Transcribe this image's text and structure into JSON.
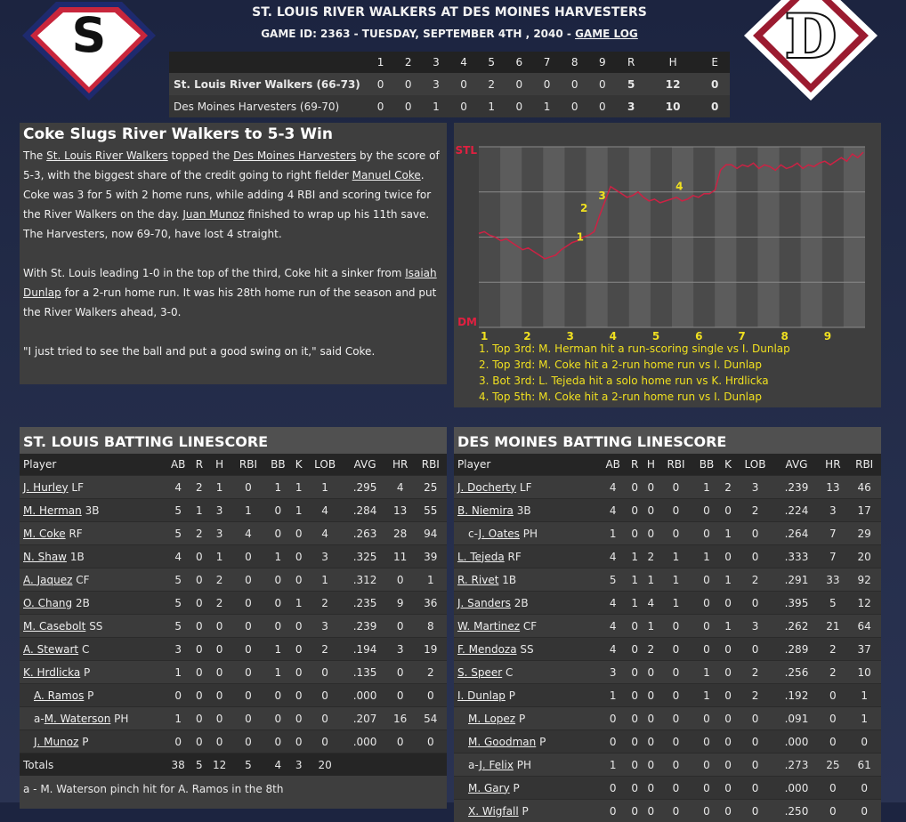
{
  "header": {
    "title": "ST. LOUIS RIVER WALKERS AT DES MOINES HARVESTERS",
    "game_line": "GAME ID: 2363 - TUESDAY, SEPTEMBER 4TH , 2040 - ",
    "game_log_link": "GAME LOG",
    "away_logo_letter": "S",
    "home_logo_letter": "D"
  },
  "linescore": {
    "columns": [
      "",
      "1",
      "2",
      "3",
      "4",
      "5",
      "6",
      "7",
      "8",
      "9",
      "R",
      "H",
      "E"
    ],
    "rows": [
      {
        "team": "St. Louis River Walkers (66-73)",
        "innings": [
          "0",
          "0",
          "3",
          "0",
          "2",
          "0",
          "0",
          "0",
          "0"
        ],
        "R": "5",
        "H": "12",
        "E": "0"
      },
      {
        "team": "Des Moines Harvesters (69-70)",
        "innings": [
          "0",
          "0",
          "1",
          "0",
          "1",
          "0",
          "1",
          "0",
          "0"
        ],
        "R": "3",
        "H": "10",
        "E": "0"
      }
    ]
  },
  "story": {
    "headline": "Coke Slugs River Walkers to 5-3 Win",
    "p1": {
      "t1": "The ",
      "l1": "St. Louis River Walkers",
      "t2": " topped the ",
      "l2": "Des Moines Harvesters",
      "t3": " by the score of 5-3, with the biggest share of the credit going to right fielder ",
      "l3": "Manuel Coke",
      "t4": ". Coke was 3 for 5 with 2 home runs, while adding 4 RBI and scoring twice for the River Walkers on the day. ",
      "l4": "Juan Munoz",
      "t5": " finished to wrap up his 11th save. The Harvesters, now 69-70, have lost 4 straight."
    },
    "p2": {
      "t1": "With St. Louis leading 1-0 in the top of the third, Coke hit a sinker from ",
      "l1": "Isaiah Dunlap",
      "t2": " for a 2-run home run. It was his 28th home run of the season and put the River Walkers ahead, 3-0."
    },
    "p3": "\"I just tried to see the ball and put a good swing on it,\" said Coke."
  },
  "win_probability": {
    "top_label": "STL",
    "bottom_label": "DM",
    "innings": [
      "1",
      "2",
      "3",
      "4",
      "5",
      "6",
      "7",
      "8",
      "9"
    ],
    "marker_labels": [
      "1",
      "2",
      "3",
      "4"
    ],
    "events": [
      "1. Top 3rd: M. Herman hit a run-scoring single vs I. Dunlap",
      "2. Top 3rd: M. Coke hit a 2-run home run vs I. Dunlap",
      "3. Bot 3rd: L. Tejeda hit a solo home run vs K. Hrdlicka",
      "4. Top 5th: M. Coke hit a 2-run home run vs I. Dunlap"
    ],
    "colors": {
      "line": "#cc2244",
      "marker": "#f0e020",
      "top_label": "#e02040",
      "bottom_label": "#e02040"
    }
  },
  "stl_batting": {
    "title": "ST. LOUIS BATTING LINESCORE",
    "columns": [
      "Player",
      "AB",
      "R",
      "H",
      "RBI",
      "BB",
      "K",
      "LOB",
      "AVG",
      "HR",
      "RBI"
    ],
    "rows": [
      {
        "prefix": "",
        "name": "J. Hurley",
        "pos": "LF",
        "indent": false,
        "s": [
          "4",
          "2",
          "1",
          "0",
          "1",
          "1",
          "1",
          ".295",
          "4",
          "25"
        ]
      },
      {
        "prefix": "",
        "name": "M. Herman",
        "pos": "3B",
        "indent": false,
        "s": [
          "5",
          "1",
          "3",
          "1",
          "0",
          "1",
          "4",
          ".284",
          "13",
          "55"
        ]
      },
      {
        "prefix": "",
        "name": "M. Coke",
        "pos": "RF",
        "indent": false,
        "s": [
          "5",
          "2",
          "3",
          "4",
          "0",
          "0",
          "4",
          ".263",
          "28",
          "94"
        ]
      },
      {
        "prefix": "",
        "name": "N. Shaw",
        "pos": "1B",
        "indent": false,
        "s": [
          "4",
          "0",
          "1",
          "0",
          "1",
          "0",
          "3",
          ".325",
          "11",
          "39"
        ]
      },
      {
        "prefix": "",
        "name": "A. Jaquez",
        "pos": "CF",
        "indent": false,
        "s": [
          "5",
          "0",
          "2",
          "0",
          "0",
          "0",
          "1",
          ".312",
          "0",
          "1"
        ]
      },
      {
        "prefix": "",
        "name": "O. Chang",
        "pos": "2B",
        "indent": false,
        "s": [
          "5",
          "0",
          "2",
          "0",
          "0",
          "1",
          "2",
          ".235",
          "9",
          "36"
        ]
      },
      {
        "prefix": "",
        "name": "M. Casebolt",
        "pos": "SS",
        "indent": false,
        "s": [
          "5",
          "0",
          "0",
          "0",
          "0",
          "0",
          "3",
          ".239",
          "0",
          "8"
        ]
      },
      {
        "prefix": "",
        "name": "A. Stewart",
        "pos": "C",
        "indent": false,
        "s": [
          "3",
          "0",
          "0",
          "0",
          "1",
          "0",
          "2",
          ".194",
          "3",
          "19"
        ]
      },
      {
        "prefix": "",
        "name": "K. Hrdlicka",
        "pos": "P",
        "indent": false,
        "s": [
          "1",
          "0",
          "0",
          "0",
          "1",
          "0",
          "0",
          ".135",
          "0",
          "2"
        ]
      },
      {
        "prefix": "",
        "name": "A. Ramos",
        "pos": "P",
        "indent": true,
        "s": [
          "0",
          "0",
          "0",
          "0",
          "0",
          "0",
          "0",
          ".000",
          "0",
          "0"
        ]
      },
      {
        "prefix": "a-",
        "name": "M. Waterson",
        "pos": "PH",
        "indent": true,
        "s": [
          "1",
          "0",
          "0",
          "0",
          "0",
          "0",
          "0",
          ".207",
          "16",
          "54"
        ]
      },
      {
        "prefix": "",
        "name": "J. Munoz",
        "pos": "P",
        "indent": true,
        "s": [
          "0",
          "0",
          "0",
          "0",
          "0",
          "0",
          "0",
          ".000",
          "0",
          "0"
        ]
      }
    ],
    "totals": {
      "label": "Totals",
      "s": [
        "38",
        "5",
        "12",
        "5",
        "4",
        "3",
        "20",
        "",
        "",
        ""
      ]
    },
    "note": "a - M. Waterson pinch hit for A. Ramos in the 8th"
  },
  "dm_batting": {
    "title": "DES MOINES BATTING LINESCORE",
    "columns": [
      "Player",
      "AB",
      "R",
      "H",
      "RBI",
      "BB",
      "K",
      "LOB",
      "AVG",
      "HR",
      "RBI"
    ],
    "rows": [
      {
        "prefix": "",
        "name": "J. Docherty",
        "pos": "LF",
        "indent": false,
        "s": [
          "4",
          "0",
          "0",
          "0",
          "1",
          "2",
          "3",
          ".239",
          "13",
          "46"
        ]
      },
      {
        "prefix": "",
        "name": "B. Niemira",
        "pos": "3B",
        "indent": false,
        "s": [
          "4",
          "0",
          "0",
          "0",
          "0",
          "0",
          "2",
          ".224",
          "3",
          "17"
        ]
      },
      {
        "prefix": "c-",
        "name": "J. Oates",
        "pos": "PH",
        "indent": true,
        "s": [
          "1",
          "0",
          "0",
          "0",
          "0",
          "1",
          "0",
          ".264",
          "7",
          "29"
        ]
      },
      {
        "prefix": "",
        "name": "L. Tejeda",
        "pos": "RF",
        "indent": false,
        "s": [
          "4",
          "1",
          "2",
          "1",
          "1",
          "0",
          "0",
          ".333",
          "7",
          "20"
        ]
      },
      {
        "prefix": "",
        "name": "R. Rivet",
        "pos": "1B",
        "indent": false,
        "s": [
          "5",
          "1",
          "1",
          "1",
          "0",
          "1",
          "2",
          ".291",
          "33",
          "92"
        ]
      },
      {
        "prefix": "",
        "name": "J. Sanders",
        "pos": "2B",
        "indent": false,
        "s": [
          "4",
          "1",
          "4",
          "1",
          "0",
          "0",
          "0",
          ".395",
          "5",
          "12"
        ]
      },
      {
        "prefix": "",
        "name": "W. Martinez",
        "pos": "CF",
        "indent": false,
        "s": [
          "4",
          "0",
          "1",
          "0",
          "0",
          "1",
          "3",
          ".262",
          "21",
          "64"
        ]
      },
      {
        "prefix": "",
        "name": "F. Mendoza",
        "pos": "SS",
        "indent": false,
        "s": [
          "4",
          "0",
          "2",
          "0",
          "0",
          "0",
          "0",
          ".289",
          "2",
          "37"
        ]
      },
      {
        "prefix": "",
        "name": "S. Speer",
        "pos": "C",
        "indent": false,
        "s": [
          "3",
          "0",
          "0",
          "0",
          "1",
          "0",
          "2",
          ".256",
          "2",
          "10"
        ]
      },
      {
        "prefix": "",
        "name": "I. Dunlap",
        "pos": "P",
        "indent": false,
        "s": [
          "1",
          "0",
          "0",
          "0",
          "1",
          "0",
          "2",
          ".192",
          "0",
          "1"
        ]
      },
      {
        "prefix": "",
        "name": "M. Lopez",
        "pos": "P",
        "indent": true,
        "s": [
          "0",
          "0",
          "0",
          "0",
          "0",
          "0",
          "0",
          ".091",
          "0",
          "1"
        ]
      },
      {
        "prefix": "",
        "name": "M. Goodman",
        "pos": "P",
        "indent": true,
        "s": [
          "0",
          "0",
          "0",
          "0",
          "0",
          "0",
          "0",
          ".000",
          "0",
          "0"
        ]
      },
      {
        "prefix": "a-",
        "name": "J. Felix",
        "pos": "PH",
        "indent": true,
        "s": [
          "1",
          "0",
          "0",
          "0",
          "0",
          "0",
          "0",
          ".273",
          "25",
          "61"
        ]
      },
      {
        "prefix": "",
        "name": "M. Gary",
        "pos": "P",
        "indent": true,
        "s": [
          "0",
          "0",
          "0",
          "0",
          "0",
          "0",
          "0",
          ".000",
          "0",
          "0"
        ]
      },
      {
        "prefix": "",
        "name": "X. Wigfall",
        "pos": "P",
        "indent": true,
        "s": [
          "0",
          "0",
          "0",
          "0",
          "0",
          "0",
          "0",
          ".250",
          "0",
          "0"
        ]
      }
    ]
  }
}
